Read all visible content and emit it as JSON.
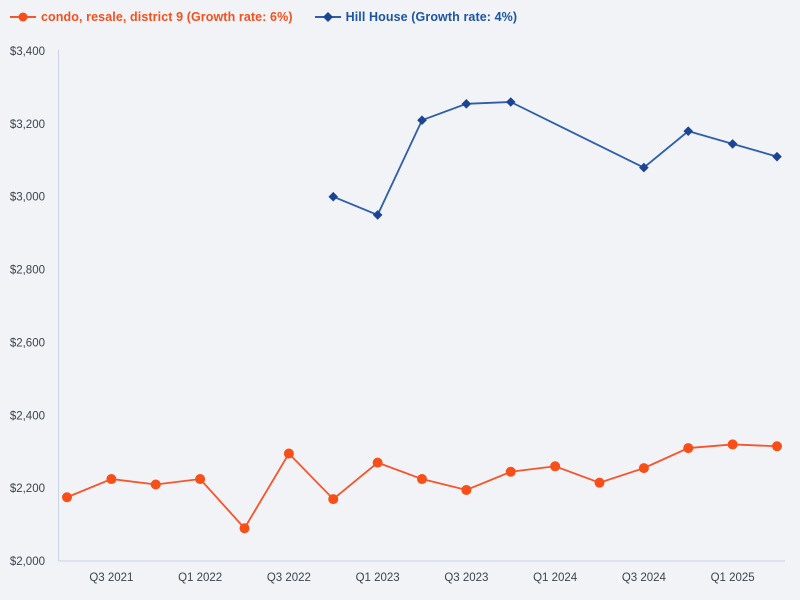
{
  "page": {
    "background_color": "#f1f3f6",
    "axis_color": "#c7d2e4",
    "tick_text_color": "#3d434e"
  },
  "chart_data": {
    "type": "line",
    "title": "",
    "xlabel": "",
    "ylabel": "",
    "legend_position": "top-left",
    "grid": "off",
    "ylim": [
      2000,
      3400
    ],
    "ytick_step": 200,
    "ytick_labels": [
      "$2,000",
      "$2,200",
      "$2,400",
      "$2,600",
      "$2,800",
      "$3,000",
      "$3,200",
      "$3,400"
    ],
    "categories": [
      "Q2 2021",
      "Q3 2021",
      "Q4 2021",
      "Q1 2022",
      "Q2 2022",
      "Q3 2022",
      "Q4 2022",
      "Q1 2023",
      "Q2 2023",
      "Q3 2023",
      "Q4 2023",
      "Q1 2024",
      "Q2 2024",
      "Q3 2024",
      "Q4 2024",
      "Q1 2025",
      "Q2 2025"
    ],
    "xtick_labels": [
      "Q3 2021",
      "Q1 2022",
      "Q3 2022",
      "Q1 2023",
      "Q3 2023",
      "Q1 2024",
      "Q3 2024",
      "Q1 2025"
    ],
    "currency_prefix": "$",
    "series": [
      {
        "name": "condo, resale, district 9 (Growth rate: 6%)",
        "marker": "circle",
        "line_color": "#f7542c",
        "marker_color": "#f84e18",
        "text_color": "#f4511e",
        "values": [
          2175,
          2225,
          2210,
          2225,
          2090,
          2295,
          2170,
          2270,
          2225,
          2195,
          2245,
          2260,
          2215,
          2255,
          2310,
          2320,
          2315
        ]
      },
      {
        "name": "Hill House (Growth rate: 4%)",
        "marker": "diamond",
        "line_color": "#2e5dab",
        "marker_color": "#1c4493",
        "text_color": "#1d55a6",
        "values": [
          null,
          null,
          null,
          null,
          null,
          null,
          3000,
          2950,
          3210,
          3255,
          3260,
          null,
          null,
          3080,
          3180,
          3145,
          3110
        ]
      }
    ]
  }
}
